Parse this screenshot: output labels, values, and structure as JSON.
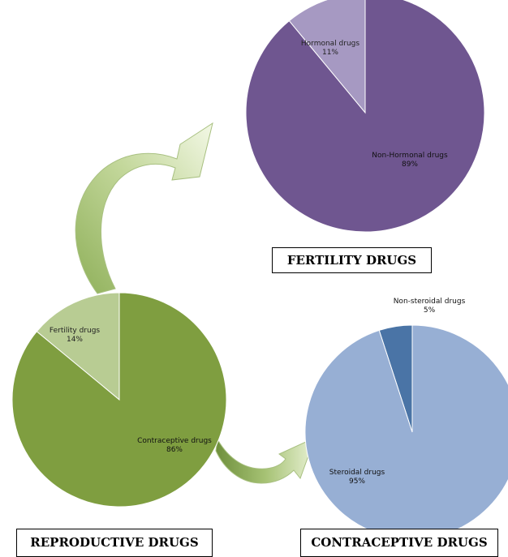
{
  "chart_data": [
    {
      "type": "pie",
      "title": "FERTILITY DRUGS",
      "slices": [
        {
          "label": "Hormonal drugs",
          "value": 11,
          "value_label": "11%",
          "color": "#a699c2"
        },
        {
          "label": "Non-Hormonal drugs",
          "value": 89,
          "value_label": "89%",
          "color": "#6f5690"
        }
      ]
    },
    {
      "type": "pie",
      "title": "REPRODUCTIVE DRUGS",
      "slices": [
        {
          "label": "Fertility drugs",
          "value": 14,
          "value_label": "14%",
          "color": "#b8cc93"
        },
        {
          "label": "Contraceptive drugs",
          "value": 86,
          "value_label": "86%",
          "color": "#7f9e40"
        }
      ]
    },
    {
      "type": "pie",
      "title": "CONTRACEPTIVE DRUGS",
      "slices": [
        {
          "label": "Non-steroidal drugs",
          "value": 5,
          "value_label": "5%",
          "color": "#4a74a6"
        },
        {
          "label": "Steroidal drugs",
          "value": 95,
          "value_label": "95%",
          "color": "#97afd4"
        }
      ]
    }
  ],
  "colors": {
    "arrow_fill_dark": "#8fb05a",
    "arrow_fill_light": "#eef5dc",
    "arrow_stroke": "#a8c080"
  }
}
